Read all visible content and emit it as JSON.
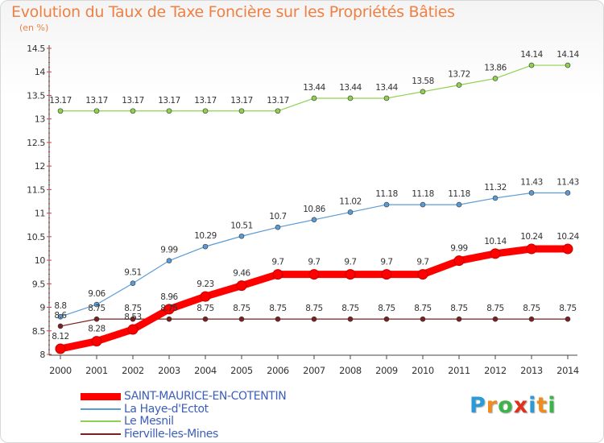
{
  "header": {
    "title": "Evolution du Taux de Taxe Foncière sur les Propriétés Bâties",
    "subtitle": "(en %)"
  },
  "chart_data": {
    "type": "line",
    "title": "Evolution du Taux de Taxe Foncière sur les Propriétés Bâties",
    "ylabel": "(en %)",
    "xlabel": "",
    "ylim": [
      8,
      14.5
    ],
    "yticks": [
      "8",
      "8.5",
      "9",
      "9.5",
      "10",
      "10.5",
      "11",
      "11.5",
      "12",
      "12.5",
      "13",
      "13.5",
      "14",
      "14.5"
    ],
    "categories": [
      "2000",
      "2001",
      "2002",
      "2003",
      "2004",
      "2005",
      "2006",
      "2007",
      "2008",
      "2009",
      "2010",
      "2011",
      "2012",
      "2013",
      "2014"
    ],
    "grid": false,
    "legend": "bottom-left",
    "series": [
      {
        "name": "Le Mesnil",
        "color": "#8fd14f",
        "values": [
          13.17,
          13.17,
          13.17,
          13.17,
          13.17,
          13.17,
          13.17,
          13.44,
          13.44,
          13.44,
          13.58,
          13.72,
          13.86,
          14.14,
          14.14
        ],
        "labels": [
          "13.17",
          "13.17",
          "13.17",
          "13.17",
          "13.17",
          "13.17",
          "13.17",
          "13.44",
          "13.44",
          "13.44",
          "13.58",
          "13.72",
          "13.86",
          "14.14",
          "14.14"
        ]
      },
      {
        "name": "La Haye-d'Ectot",
        "color": "#5b9bd5",
        "values": [
          8.8,
          9.06,
          9.51,
          9.99,
          10.29,
          10.51,
          10.7,
          10.86,
          11.02,
          11.18,
          11.18,
          11.18,
          11.32,
          11.43,
          11.43
        ],
        "labels": [
          "8.8",
          "9.06",
          "9.51",
          "9.99",
          "10.29",
          "10.51",
          "10.7",
          "10.86",
          "11.02",
          "11.18",
          "11.18",
          "11.18",
          "11.32",
          "11.43",
          "11.43"
        ]
      },
      {
        "name": "Fierville-les-Mines",
        "color": "#7b2020",
        "values": [
          8.6,
          8.75,
          8.75,
          8.75,
          8.75,
          8.75,
          8.75,
          8.75,
          8.75,
          8.75,
          8.75,
          8.75,
          8.75,
          8.75,
          8.75
        ],
        "labels": [
          "8.6",
          "8.75",
          "8.75",
          "8.75",
          "8.75",
          "8.75",
          "8.75",
          "8.75",
          "8.75",
          "8.75",
          "8.75",
          "8.75",
          "8.75",
          "8.75",
          "8.75"
        ]
      },
      {
        "name": "SAINT-MAURICE-EN-COTENTIN",
        "color": "#ff0000",
        "values": [
          8.12,
          8.28,
          8.53,
          8.96,
          9.23,
          9.46,
          9.7,
          9.7,
          9.7,
          9.7,
          9.7,
          9.99,
          10.14,
          10.24,
          10.24
        ],
        "labels": [
          "8.12",
          "8.28",
          "8.53",
          "8.96",
          "9.23",
          "9.46",
          "9.7",
          "9.7",
          "9.7",
          "9.7",
          "9.7",
          "9.99",
          "10.14",
          "10.24",
          "10.24"
        ]
      }
    ]
  },
  "legend": {
    "items": [
      {
        "label": "SAINT-MAURICE-EN-COTENTIN",
        "color": "#ff0000"
      },
      {
        "label": "La Haye-d'Ectot",
        "color": "#5b9bd5"
      },
      {
        "label": "Le Mesnil",
        "color": "#8fd14f"
      },
      {
        "label": "Fierville-les-Mines",
        "color": "#7b2020"
      }
    ]
  },
  "logo": {
    "letters": [
      "P",
      "r",
      "o",
      "x",
      "i",
      "t",
      "i"
    ],
    "colors": [
      "#2a9bd7",
      "#f08c1e",
      "#3cb44a",
      "#e0301e",
      "#2a9bd7",
      "#f08c1e",
      "#3cb44a"
    ]
  }
}
